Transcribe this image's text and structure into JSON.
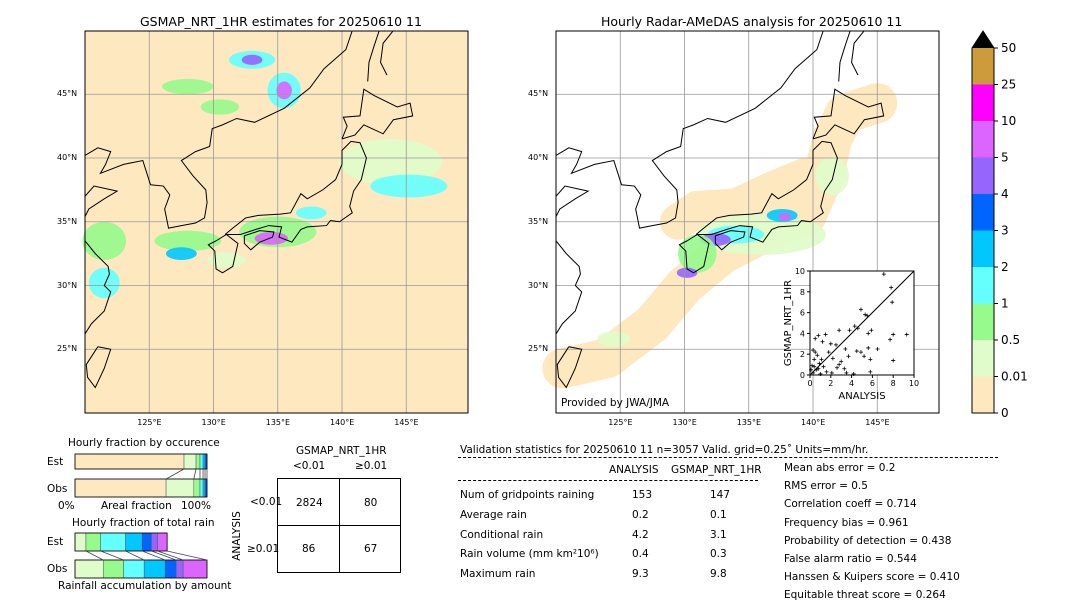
{
  "left_map": {
    "title": "GSMAP_NRT_1HR estimates for 20250610 11",
    "lon_ticks": [
      "125°E",
      "130°E",
      "135°E",
      "140°E",
      "145°E"
    ],
    "lat_ticks": [
      "45°N",
      "40°N",
      "35°N",
      "30°N",
      "25°N"
    ]
  },
  "right_map": {
    "title": "Hourly Radar-AMeDAS analysis for 20250610 11",
    "credit": "Provided by JWA/JMA",
    "lon_ticks": [
      "125°E",
      "130°E",
      "135°E",
      "140°E",
      "145°E"
    ],
    "lat_ticks": [
      "45°N",
      "40°N",
      "35°N",
      "30°N",
      "25°N"
    ]
  },
  "colorbar": {
    "levels": [
      "0",
      "0.01",
      "0.5",
      "1",
      "2",
      "3",
      "4",
      "5",
      "10",
      "25",
      "50"
    ],
    "colors": [
      "#fee8c0",
      "#e0fcca",
      "#96fa8c",
      "#64ffff",
      "#00c8ff",
      "#0064ff",
      "#9664ff",
      "#dc64ff",
      "#ff00ff",
      "#cd9a3c"
    ],
    "extend_color": "#000000"
  },
  "chart_data": [
    {
      "type": "scatter",
      "xlabel": "ANALYSIS",
      "ylabel": "GSMAP_NRT_1HR",
      "xlim": [
        0,
        10
      ],
      "ylim": [
        0,
        10
      ],
      "ticks": [
        "0",
        "2",
        "4",
        "6",
        "8",
        "10"
      ],
      "diagonal": true,
      "points": [
        [
          7.1,
          9.7
        ],
        [
          7.8,
          8.4
        ],
        [
          7.9,
          7
        ],
        [
          4.9,
          6.3
        ],
        [
          5.3,
          5.8
        ],
        [
          5.5,
          5.7
        ],
        [
          4.3,
          4.7
        ],
        [
          4.6,
          4.5
        ],
        [
          2.8,
          4.3
        ],
        [
          3.8,
          4.3
        ],
        [
          5.9,
          4.3
        ],
        [
          5.6,
          4.0
        ],
        [
          1.5,
          3.9
        ],
        [
          0.8,
          3.8
        ],
        [
          7.7,
          3.4
        ],
        [
          8.0,
          3.9
        ],
        [
          9.3,
          3.9
        ],
        [
          0.5,
          3.5
        ],
        [
          1.2,
          3.2
        ],
        [
          2.0,
          3.0
        ],
        [
          2.5,
          2.9
        ],
        [
          3.4,
          2.5
        ],
        [
          5.6,
          2.6
        ],
        [
          6.5,
          2.5
        ],
        [
          4.9,
          2.2
        ],
        [
          4.5,
          2.3
        ],
        [
          5.2,
          1.8
        ],
        [
          5.8,
          1.5
        ],
        [
          8.0,
          1.4
        ],
        [
          3.7,
          1.8
        ],
        [
          1.8,
          2.2
        ],
        [
          2.2,
          1.6
        ],
        [
          3.0,
          1.3
        ],
        [
          0.3,
          2.4
        ],
        [
          0.5,
          2.2
        ],
        [
          0.7,
          1.9
        ],
        [
          0.4,
          1.5
        ],
        [
          0.9,
          1.1
        ],
        [
          1.3,
          0.8
        ],
        [
          2.6,
          0.7
        ],
        [
          3.3,
          0.6
        ],
        [
          0.2,
          0.9
        ],
        [
          0.6,
          0.5
        ],
        [
          1.6,
          0.3
        ],
        [
          2.1,
          0.2
        ],
        [
          3.5,
          0.2
        ],
        [
          5.8,
          0.3
        ],
        [
          0.3,
          0.2
        ],
        [
          1.0,
          0.1
        ],
        [
          4.2,
          0.1
        ],
        [
          0.1,
          0.5
        ],
        [
          0.4,
          0.8
        ],
        [
          0.8,
          0.6
        ],
        [
          1.1,
          1.5
        ],
        [
          2.8,
          1.0
        ]
      ]
    },
    {
      "type": "bar",
      "title": "Hourly fraction by occurence",
      "categories": [
        "Est",
        "Obs"
      ],
      "xlabel": "Areal fraction",
      "xtick_left": "0%",
      "xtick_right": "100%",
      "cumulative": {
        "Est": [
          0.826,
          0.917,
          0.947,
          0.97,
          0.985,
          1.0
        ],
        "Obs": [
          0.69,
          0.9,
          0.947,
          0.97,
          0.985,
          1.0
        ]
      }
    },
    {
      "type": "bar",
      "title": "Hourly fraction of total rain",
      "categories": [
        "Est",
        "Obs"
      ],
      "xlabel": "Rainfall accumulation by amount",
      "cumulative": {
        "Est": [
          0.083,
          0.194,
          0.383,
          0.509,
          0.579,
          0.625,
          0.698
        ],
        "Obs": [
          0.214,
          0.368,
          0.524,
          0.683,
          0.766,
          0.819,
          1.0
        ]
      }
    },
    {
      "type": "table",
      "title": "GSMAP_NRT_1HR",
      "col_labels": [
        "<0.01",
        "≥0.01"
      ],
      "row_title": "ANALYSIS",
      "row_labels": [
        "<0.01",
        "≥0.01"
      ],
      "cells": [
        [
          "2824",
          "80"
        ],
        [
          "86",
          "67"
        ]
      ]
    }
  ],
  "stats": {
    "header": "Validation statistics for 20250610 11  n=3057 Valid. grid=0.25˚ Units=mm/hr.",
    "col_analysis": "ANALYSIS",
    "col_gsmap": "GSMAP_NRT_1HR",
    "rows": [
      {
        "label": "Num of gridpoints raining",
        "a": "153",
        "g": "147"
      },
      {
        "label": "Average rain",
        "a": "0.2",
        "g": "0.1"
      },
      {
        "label": "Conditional rain",
        "a": "4.2",
        "g": "3.1"
      },
      {
        "label": "Rain volume (mm km²10⁶)",
        "a": "0.4",
        "g": "0.3"
      },
      {
        "label": "Maximum rain",
        "a": "9.3",
        "g": "9.8"
      }
    ],
    "scores": [
      "Mean abs error =    0.2",
      "RMS error =    0.5",
      "Correlation coeff =  0.714",
      "Frequency bias =  0.961",
      "Probability of detection =  0.438",
      "False alarm ratio =  0.544",
      "Hanssen & Kuipers score =  0.410",
      "Equitable threat score =  0.264"
    ]
  }
}
